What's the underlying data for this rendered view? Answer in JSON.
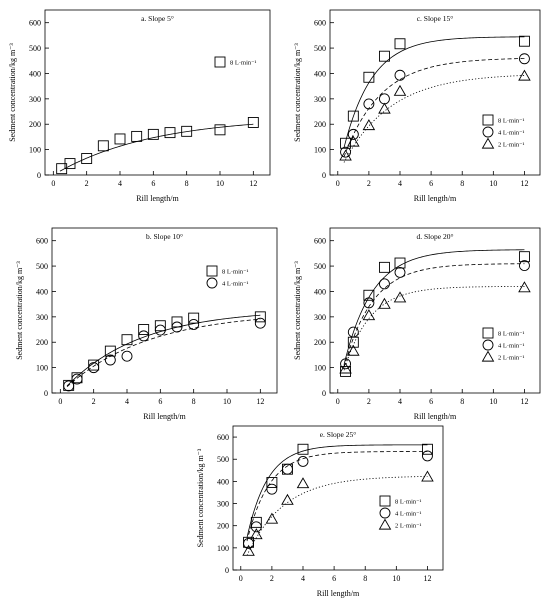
{
  "chart_data": [
    {
      "type": "scatter",
      "title": "a. Slope 5°",
      "xlabel": "Rill length/m",
      "ylabel": "Sedment concentration/kg m⁻³",
      "xlim": [
        -0.5,
        13
      ],
      "ylim": [
        0,
        650
      ],
      "xticks": [
        0,
        2,
        4,
        6,
        8,
        10,
        12
      ],
      "yticks": [
        0,
        100,
        200,
        300,
        400,
        500,
        600
      ],
      "legend_position": "top-right",
      "series": [
        {
          "name": "8 L·min⁻¹",
          "marker": "square",
          "curve": "solid",
          "x": [
            0.5,
            1,
            2,
            3,
            4,
            5,
            6,
            7,
            8,
            10,
            12
          ],
          "y": [
            25,
            45,
            65,
            115,
            142,
            152,
            160,
            167,
            172,
            178,
            207
          ],
          "fit": {
            "a": 230,
            "k": 0.17
          }
        }
      ]
    },
    {
      "type": "scatter",
      "title": "c. Slope 15°",
      "xlabel": "Rill length/m",
      "ylabel": "Sedment concentration/kg m⁻³",
      "xlim": [
        -0.5,
        13
      ],
      "ylim": [
        0,
        650
      ],
      "xticks": [
        0,
        2,
        4,
        6,
        8,
        10,
        12
      ],
      "yticks": [
        0,
        100,
        200,
        300,
        400,
        500,
        600
      ],
      "legend_position": "bottom-right",
      "series": [
        {
          "name": "8 L·min⁻¹",
          "marker": "square",
          "curve": "solid",
          "x": [
            0.5,
            1,
            2,
            3,
            4,
            12
          ],
          "y": [
            125,
            232,
            385,
            468,
            517,
            527
          ],
          "fit": {
            "a": 545,
            "k": 0.55
          }
        },
        {
          "name": "4 L·min⁻¹",
          "marker": "circle",
          "curve": "dash",
          "x": [
            0.5,
            1,
            2,
            3,
            4,
            12
          ],
          "y": [
            90,
            160,
            280,
            300,
            393,
            458
          ],
          "fit": {
            "a": 462,
            "k": 0.42
          }
        },
        {
          "name": "2 L·min⁻¹",
          "marker": "triangle",
          "curve": "dot",
          "x": [
            0.5,
            1,
            2,
            3,
            4,
            12
          ],
          "y": [
            75,
            130,
            195,
            260,
            330,
            390
          ],
          "fit": {
            "a": 400,
            "k": 0.33
          }
        }
      ]
    },
    {
      "type": "scatter",
      "title": "b. Slope 10°",
      "xlabel": "Rill length/m",
      "ylabel": "Sedment concentration/kg m⁻³",
      "xlim": [
        -0.5,
        13
      ],
      "ylim": [
        0,
        650
      ],
      "xticks": [
        0,
        2,
        4,
        6,
        8,
        10,
        12
      ],
      "yticks": [
        0,
        100,
        200,
        300,
        400,
        500,
        600
      ],
      "legend_position": "top-right",
      "series": [
        {
          "name": "8 L·min⁻¹",
          "marker": "square",
          "curve": "solid",
          "x": [
            0.5,
            1,
            2,
            3,
            4,
            5,
            6,
            7,
            8,
            12
          ],
          "y": [
            30,
            60,
            110,
            165,
            210,
            250,
            265,
            280,
            295,
            300
          ],
          "fit": {
            "a": 330,
            "k": 0.22
          }
        },
        {
          "name": "4 L·min⁻¹",
          "marker": "circle",
          "curve": "dash",
          "x": [
            0.5,
            1,
            2,
            3,
            4,
            5,
            6,
            7,
            8,
            12
          ],
          "y": [
            28,
            55,
            100,
            130,
            145,
            225,
            248,
            260,
            270,
            275
          ],
          "fit": {
            "a": 320,
            "k": 0.2
          }
        }
      ]
    },
    {
      "type": "scatter",
      "title": "d. Slope 20°",
      "xlabel": "Rill length/m",
      "ylabel": "Sedment concentration/kg m⁻³",
      "xlim": [
        -0.5,
        13
      ],
      "ylim": [
        0,
        650
      ],
      "xticks": [
        0,
        2,
        4,
        6,
        8,
        10,
        12
      ],
      "yticks": [
        0,
        100,
        200,
        300,
        400,
        500,
        600
      ],
      "legend_position": "bottom-right",
      "series": [
        {
          "name": "8 L·min⁻¹",
          "marker": "square",
          "curve": "solid",
          "x": [
            0.5,
            1,
            2,
            3,
            4,
            12
          ],
          "y": [
            85,
            200,
            385,
            495,
            512,
            537
          ],
          "fit": {
            "a": 565,
            "k": 0.55
          }
        },
        {
          "name": "4 L·min⁻¹",
          "marker": "circle",
          "curve": "dash",
          "x": [
            0.5,
            1,
            2,
            3,
            4,
            12
          ],
          "y": [
            115,
            240,
            355,
            430,
            475,
            502
          ],
          "fit": {
            "a": 510,
            "k": 0.55
          }
        },
        {
          "name": "2 L·min⁻¹",
          "marker": "triangle",
          "curve": "dot",
          "x": [
            0.5,
            1,
            2,
            3,
            4,
            12
          ],
          "y": [
            95,
            165,
            305,
            350,
            375,
            415
          ],
          "fit": {
            "a": 420,
            "k": 0.6
          }
        }
      ]
    },
    {
      "type": "scatter",
      "title": "e. Slope 25°",
      "xlabel": "Rill length/m",
      "ylabel": "Sedment concentration/kg m⁻³",
      "xlim": [
        -0.5,
        13
      ],
      "ylim": [
        0,
        650
      ],
      "xticks": [
        0,
        2,
        4,
        6,
        8,
        10,
        12
      ],
      "yticks": [
        0,
        100,
        200,
        300,
        400,
        500,
        600
      ],
      "legend_position": "bottom-right",
      "series": [
        {
          "name": "8 L·min⁻¹",
          "marker": "square",
          "curve": "solid",
          "x": [
            0.5,
            1,
            2,
            3,
            4,
            12
          ],
          "y": [
            125,
            215,
            395,
            455,
            545,
            545
          ],
          "fit": {
            "a": 565,
            "k": 0.75
          }
        },
        {
          "name": "4 L·min⁻¹",
          "marker": "circle",
          "curve": "dash",
          "x": [
            0.5,
            1,
            2,
            3,
            4,
            12
          ],
          "y": [
            120,
            195,
            365,
            455,
            490,
            515
          ],
          "fit": {
            "a": 535,
            "k": 0.7
          }
        },
        {
          "name": "2 L·min⁻¹",
          "marker": "triangle",
          "curve": "dot",
          "x": [
            0.5,
            1,
            2,
            3,
            4,
            12
          ],
          "y": [
            85,
            160,
            230,
            315,
            390,
            420
          ],
          "fit": {
            "a": 425,
            "k": 0.42
          }
        }
      ]
    }
  ]
}
